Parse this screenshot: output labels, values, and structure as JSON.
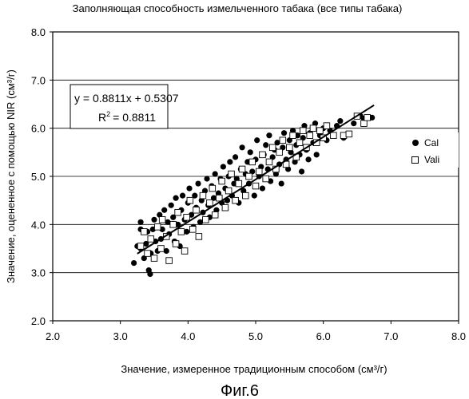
{
  "chart_data": {
    "type": "scatter",
    "title": "Заполняющая способность измельченного табака (все типы табака)",
    "xlabel": "Значение, измеренное традиционным способом (см³/г)",
    "ylabel": "Значение, оцененное с помощью NIR (см³/г)",
    "xlim": [
      2.0,
      8.0
    ],
    "ylim": [
      2.0,
      8.0
    ],
    "x_ticks": [
      "2.0",
      "3.0",
      "4.0",
      "5.0",
      "6.0",
      "7.0",
      "8.0"
    ],
    "y_ticks": [
      "2.0",
      "3.0",
      "4.0",
      "5.0",
      "6.0",
      "7.0",
      "8.0"
    ],
    "grid": "horizontal",
    "legend_position": "right",
    "regression": {
      "equation": "y = 0.8811x + 0.5307",
      "r2_label": "R",
      "r2_value": "= 0.8811",
      "slope": 0.8811,
      "intercept": 0.5307,
      "x_range": [
        3.25,
        6.75
      ]
    },
    "series": [
      {
        "name": "Cal",
        "marker": "filled-circle",
        "points": [
          [
            3.2,
            3.2
          ],
          [
            3.25,
            3.55
          ],
          [
            3.3,
            3.5
          ],
          [
            3.3,
            3.9
          ],
          [
            3.3,
            4.05
          ],
          [
            3.35,
            3.3
          ],
          [
            3.38,
            3.6
          ],
          [
            3.4,
            3.85
          ],
          [
            3.42,
            3.05
          ],
          [
            3.44,
            2.97
          ],
          [
            3.45,
            3.4
          ],
          [
            3.48,
            3.9
          ],
          [
            3.5,
            4.1
          ],
          [
            3.52,
            3.65
          ],
          [
            3.55,
            3.45
          ],
          [
            3.58,
            4.2
          ],
          [
            3.6,
            3.7
          ],
          [
            3.62,
            3.9
          ],
          [
            3.65,
            4.3
          ],
          [
            3.68,
            3.45
          ],
          [
            3.7,
            4.05
          ],
          [
            3.72,
            3.8
          ],
          [
            3.75,
            4.4
          ],
          [
            3.78,
            4.15
          ],
          [
            3.8,
            3.65
          ],
          [
            3.82,
            4.55
          ],
          [
            3.85,
            4.0
          ],
          [
            3.88,
            3.55
          ],
          [
            3.9,
            4.3
          ],
          [
            3.92,
            4.6
          ],
          [
            3.95,
            4.1
          ],
          [
            3.98,
            3.85
          ],
          [
            4.0,
            4.45
          ],
          [
            4.02,
            4.75
          ],
          [
            4.05,
            4.2
          ],
          [
            4.08,
            3.95
          ],
          [
            4.1,
            4.6
          ],
          [
            4.12,
            4.35
          ],
          [
            4.15,
            4.85
          ],
          [
            4.18,
            4.05
          ],
          [
            4.2,
            4.5
          ],
          [
            4.22,
            4.25
          ],
          [
            4.25,
            4.7
          ],
          [
            4.28,
            4.95
          ],
          [
            4.3,
            4.4
          ],
          [
            4.32,
            4.15
          ],
          [
            4.35,
            4.8
          ],
          [
            4.38,
            4.55
          ],
          [
            4.4,
            5.05
          ],
          [
            4.42,
            4.3
          ],
          [
            4.45,
            4.65
          ],
          [
            4.48,
            4.95
          ],
          [
            4.5,
            4.45
          ],
          [
            4.52,
            5.2
          ],
          [
            4.55,
            4.75
          ],
          [
            4.58,
            4.5
          ],
          [
            4.6,
            5.0
          ],
          [
            4.62,
            5.3
          ],
          [
            4.65,
            4.6
          ],
          [
            4.68,
            4.85
          ],
          [
            4.7,
            5.4
          ],
          [
            4.72,
            4.95
          ],
          [
            4.75,
            4.45
          ],
          [
            4.78,
            5.15
          ],
          [
            4.8,
            5.6
          ],
          [
            4.82,
            4.7
          ],
          [
            4.85,
            5.05
          ],
          [
            4.88,
            5.3
          ],
          [
            4.9,
            4.85
          ],
          [
            4.92,
            5.5
          ],
          [
            4.95,
            5.1
          ],
          [
            4.98,
            4.6
          ],
          [
            5.0,
            5.35
          ],
          [
            5.02,
            5.75
          ],
          [
            5.05,
            5.0
          ],
          [
            5.08,
            5.2
          ],
          [
            5.1,
            4.75
          ],
          [
            5.12,
            5.45
          ],
          [
            5.15,
            5.65
          ],
          [
            5.18,
            5.15
          ],
          [
            5.2,
            5.85
          ],
          [
            5.22,
            4.9
          ],
          [
            5.25,
            5.4
          ],
          [
            5.28,
            5.55
          ],
          [
            5.3,
            5.05
          ],
          [
            5.32,
            5.7
          ],
          [
            5.35,
            5.25
          ],
          [
            5.38,
            4.85
          ],
          [
            5.4,
            5.6
          ],
          [
            5.42,
            5.9
          ],
          [
            5.45,
            5.35
          ],
          [
            5.48,
            5.15
          ],
          [
            5.5,
            5.75
          ],
          [
            5.52,
            5.5
          ],
          [
            5.55,
            5.95
          ],
          [
            5.58,
            5.3
          ],
          [
            5.6,
            5.65
          ],
          [
            5.62,
            5.85
          ],
          [
            5.65,
            5.45
          ],
          [
            5.68,
            5.1
          ],
          [
            5.7,
            5.8
          ],
          [
            5.72,
            6.05
          ],
          [
            5.75,
            5.55
          ],
          [
            5.78,
            5.35
          ],
          [
            5.8,
            5.9
          ],
          [
            5.85,
            5.7
          ],
          [
            5.88,
            6.1
          ],
          [
            5.9,
            5.45
          ],
          [
            5.95,
            5.85
          ],
          [
            6.0,
            6.0
          ],
          [
            6.05,
            5.75
          ],
          [
            6.1,
            5.95
          ],
          [
            6.2,
            6.05
          ],
          [
            6.25,
            6.15
          ],
          [
            6.3,
            5.8
          ],
          [
            6.45,
            6.1
          ],
          [
            6.55,
            6.25
          ],
          [
            6.6,
            6.2
          ],
          [
            6.72,
            6.22
          ]
        ]
      },
      {
        "name": "Vali",
        "marker": "open-square",
        "points": [
          [
            3.3,
            3.55
          ],
          [
            3.35,
            3.85
          ],
          [
            3.4,
            3.4
          ],
          [
            3.45,
            3.7
          ],
          [
            3.5,
            3.3
          ],
          [
            3.55,
            3.95
          ],
          [
            3.6,
            3.5
          ],
          [
            3.62,
            4.1
          ],
          [
            3.68,
            3.75
          ],
          [
            3.72,
            3.25
          ],
          [
            3.78,
            4.0
          ],
          [
            3.82,
            3.6
          ],
          [
            3.85,
            4.25
          ],
          [
            3.9,
            3.85
          ],
          [
            3.95,
            3.45
          ],
          [
            3.98,
            4.15
          ],
          [
            4.03,
            4.5
          ],
          [
            4.07,
            3.9
          ],
          [
            4.12,
            4.3
          ],
          [
            4.16,
            3.75
          ],
          [
            4.22,
            4.6
          ],
          [
            4.26,
            4.1
          ],
          [
            4.32,
            4.45
          ],
          [
            4.36,
            4.75
          ],
          [
            4.4,
            4.2
          ],
          [
            4.46,
            4.55
          ],
          [
            4.5,
            4.9
          ],
          [
            4.55,
            4.35
          ],
          [
            4.6,
            4.7
          ],
          [
            4.64,
            5.05
          ],
          [
            4.7,
            4.5
          ],
          [
            4.75,
            4.85
          ],
          [
            4.8,
            5.15
          ],
          [
            4.85,
            4.6
          ],
          [
            4.9,
            5.0
          ],
          [
            4.95,
            5.3
          ],
          [
            5.0,
            4.8
          ],
          [
            5.05,
            5.1
          ],
          [
            5.1,
            5.45
          ],
          [
            5.15,
            4.95
          ],
          [
            5.2,
            5.3
          ],
          [
            5.25,
            5.6
          ],
          [
            5.3,
            5.15
          ],
          [
            5.35,
            5.5
          ],
          [
            5.4,
            5.75
          ],
          [
            5.45,
            5.25
          ],
          [
            5.5,
            5.6
          ],
          [
            5.55,
            5.85
          ],
          [
            5.6,
            5.4
          ],
          [
            5.65,
            5.7
          ],
          [
            5.7,
            5.95
          ],
          [
            5.75,
            5.6
          ],
          [
            5.8,
            5.85
          ],
          [
            5.85,
            6.0
          ],
          [
            5.9,
            5.7
          ],
          [
            5.95,
            5.95
          ],
          [
            6.0,
            5.8
          ],
          [
            6.05,
            6.05
          ],
          [
            6.15,
            5.85
          ],
          [
            6.3,
            5.85
          ],
          [
            6.38,
            5.88
          ],
          [
            6.5,
            6.25
          ],
          [
            6.6,
            6.1
          ],
          [
            6.65,
            6.22
          ]
        ]
      }
    ]
  },
  "figure_caption": "Фиг.6"
}
